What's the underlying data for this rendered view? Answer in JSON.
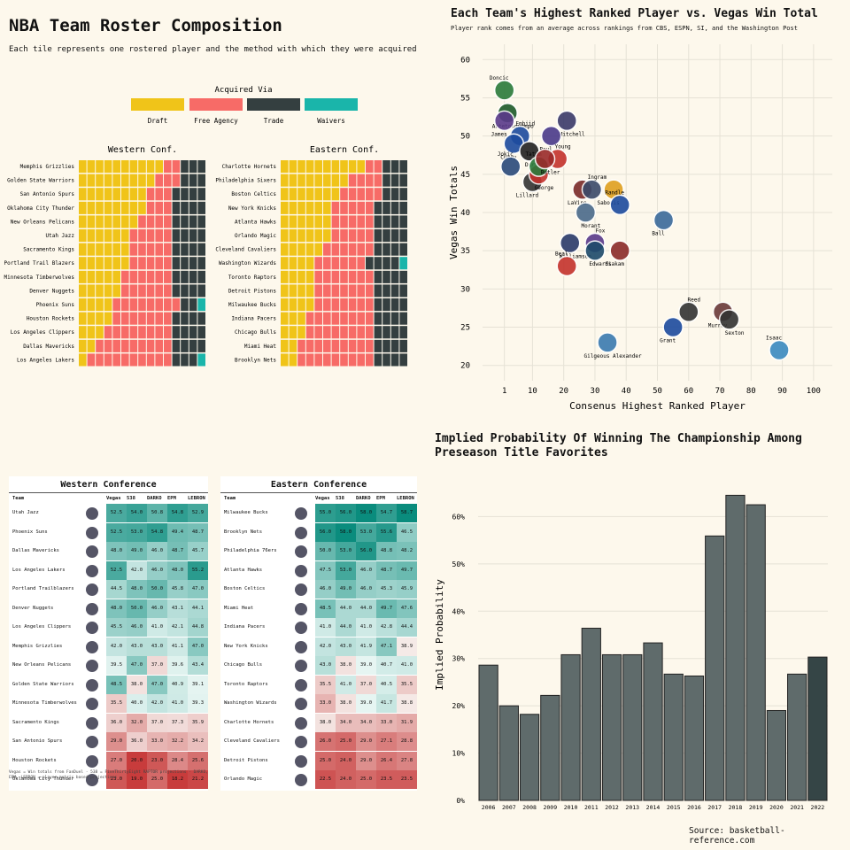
{
  "colors": {
    "draft": "#f0c419",
    "free_agency": "#f76b67",
    "trade": "#343f40",
    "waivers": "#1ab5aa",
    "bar": "#5f6b6b",
    "bar_last": "#354546",
    "bg": "#fdf8ec"
  },
  "roster": {
    "title": "NBA Team Roster Composition",
    "subtitle": "Each tile represents one rostered player and the method with which they were acquired",
    "legend_title": "Acquired Via",
    "legend": [
      "Draft",
      "Free Agency",
      "Trade",
      "Waivers"
    ]
  },
  "chart_data": [
    {
      "type": "heatmap",
      "title": "Western Conf.",
      "categories_note": "rows = teams; values = [draft, free agency, trade, waivers] tile counts",
      "rows": [
        {
          "team": "Memphis Grizzlies",
          "counts": [
            10,
            2,
            3,
            0
          ]
        },
        {
          "team": "Golden State Warriors",
          "counts": [
            9,
            3,
            3,
            0
          ]
        },
        {
          "team": "San Antonio Spurs",
          "counts": [
            8,
            3,
            4,
            0
          ]
        },
        {
          "team": "Oklahoma City Thunder",
          "counts": [
            8,
            3,
            4,
            0
          ]
        },
        {
          "team": "New Orleans Pelicans",
          "counts": [
            7,
            4,
            4,
            0
          ]
        },
        {
          "team": "Utah Jazz",
          "counts": [
            6,
            5,
            4,
            0
          ]
        },
        {
          "team": "Sacramento Kings",
          "counts": [
            6,
            5,
            4,
            0
          ]
        },
        {
          "team": "Portland Trail Blazers",
          "counts": [
            6,
            5,
            4,
            0
          ]
        },
        {
          "team": "Minnesota Timberwolves",
          "counts": [
            5,
            6,
            4,
            0
          ]
        },
        {
          "team": "Denver Nuggets",
          "counts": [
            5,
            6,
            4,
            0
          ]
        },
        {
          "team": "Phoenix Suns",
          "counts": [
            4,
            8,
            2,
            1
          ]
        },
        {
          "team": "Houston Rockets",
          "counts": [
            4,
            7,
            4,
            0
          ]
        },
        {
          "team": "Los Angeles Clippers",
          "counts": [
            3,
            8,
            4,
            0
          ]
        },
        {
          "team": "Dallas Mavericks",
          "counts": [
            2,
            9,
            4,
            0
          ]
        },
        {
          "team": "Los Angeles Lakers",
          "counts": [
            1,
            10,
            3,
            1
          ]
        }
      ]
    },
    {
      "type": "heatmap",
      "title": "Eastern Conf.",
      "rows": [
        {
          "team": "Charlotte Hornets",
          "counts": [
            10,
            2,
            3,
            0
          ]
        },
        {
          "team": "Philadelphia Sixers",
          "counts": [
            8,
            4,
            3,
            0
          ]
        },
        {
          "team": "Boston Celtics",
          "counts": [
            7,
            5,
            3,
            0
          ]
        },
        {
          "team": "New York Knicks",
          "counts": [
            6,
            5,
            4,
            0
          ]
        },
        {
          "team": "Atlanta Hawks",
          "counts": [
            6,
            5,
            4,
            0
          ]
        },
        {
          "team": "Orlando Magic",
          "counts": [
            6,
            5,
            4,
            0
          ]
        },
        {
          "team": "Cleveland Cavaliers",
          "counts": [
            5,
            6,
            4,
            0
          ]
        },
        {
          "team": "Washington Wizards",
          "counts": [
            4,
            6,
            4,
            1
          ]
        },
        {
          "team": "Toronto Raptors",
          "counts": [
            4,
            7,
            4,
            0
          ]
        },
        {
          "team": "Detroit Pistons",
          "counts": [
            4,
            7,
            4,
            0
          ]
        },
        {
          "team": "Milwaukee Bucks",
          "counts": [
            4,
            7,
            4,
            0
          ]
        },
        {
          "team": "Indiana Pacers",
          "counts": [
            3,
            8,
            4,
            0
          ]
        },
        {
          "team": "Chicago Bulls",
          "counts": [
            3,
            8,
            4,
            0
          ]
        },
        {
          "team": "Miami Heat",
          "counts": [
            2,
            9,
            4,
            0
          ]
        },
        {
          "team": "Brooklyn Nets",
          "counts": [
            2,
            9,
            4,
            0
          ]
        }
      ]
    },
    {
      "type": "scatter",
      "title": "Each Team's Highest Ranked Player vs. Vegas Win Total",
      "subtitle": "Player rank comes from an average across rankings from CBS, ESPN, SI, and the Washington Post",
      "xlabel": "Consenus Highest Ranked Player",
      "ylabel": "Vegas Win Totals",
      "xlim": [
        -6,
        106
      ],
      "ylim": [
        18,
        62
      ],
      "xticks": [
        1,
        10,
        20,
        30,
        40,
        50,
        60,
        70,
        80,
        90,
        100
      ],
      "yticks": [
        20,
        25,
        30,
        35,
        40,
        45,
        50,
        55,
        60
      ],
      "points": [
        {
          "label": "Doncic",
          "x": 1,
          "y": 56,
          "c": "#2a7a3a"
        },
        {
          "label": "Antetokounmpo",
          "x": 2,
          "y": 53,
          "c": "#1d5a2a"
        },
        {
          "label": "James",
          "x": 1,
          "y": 52,
          "c": "#5a3a8a"
        },
        {
          "label": "Embiid",
          "x": 6,
          "y": 50,
          "c": "#1d4b9e"
        },
        {
          "label": "Curry",
          "x": 4,
          "y": 49,
          "c": "#1d4b9e"
        },
        {
          "label": "Durant",
          "x": 9,
          "y": 48,
          "c": "#222222"
        },
        {
          "label": "Jokic",
          "x": 3,
          "y": 46,
          "c": "#2a4a7a"
        },
        {
          "label": "Mitchell",
          "x": 21,
          "y": 52,
          "c": "#3a3a6a"
        },
        {
          "label": "Paul",
          "x": 16,
          "y": 50,
          "c": "#4a3a8a"
        },
        {
          "label": "Young",
          "x": 18,
          "y": 47,
          "c": "#c4322c"
        },
        {
          "label": "Lillard",
          "x": 10,
          "y": 44,
          "c": "#333333"
        },
        {
          "label": "George",
          "x": 12,
          "y": 45,
          "c": "#c4322c"
        },
        {
          "label": "Tatum",
          "x": 12,
          "y": 46,
          "c": "#2a7a3a"
        },
        {
          "label": "Butler",
          "x": 14,
          "y": 47,
          "c": "#9a2a2a"
        },
        {
          "label": "LaVine",
          "x": 26,
          "y": 43,
          "c": "#7a2a2a"
        },
        {
          "label": "Ingram",
          "x": 29,
          "y": 43,
          "c": "#3a4a6a"
        },
        {
          "label": "Sabonis",
          "x": 36,
          "y": 43,
          "c": "#e0a020"
        },
        {
          "label": "Morant",
          "x": 27,
          "y": 40,
          "c": "#4a6a8a"
        },
        {
          "label": "Randle",
          "x": 38,
          "y": 41,
          "c": "#1d4b9e"
        },
        {
          "label": "Gilgeous Alexander",
          "x": 34,
          "y": 23,
          "c": "#3a7ab0"
        },
        {
          "label": "Siakam",
          "x": 38,
          "y": 35,
          "c": "#8a2a2a"
        },
        {
          "label": "Fox",
          "x": 30,
          "y": 36,
          "c": "#5a3a8a"
        },
        {
          "label": "Ball",
          "x": 52,
          "y": 39,
          "c": "#3a6a9a"
        },
        {
          "label": "Williamson",
          "x": 22,
          "y": 36,
          "c": "#2a3a6a"
        },
        {
          "label": "Beal",
          "x": 21,
          "y": 33,
          "c": "#c4322c"
        },
        {
          "label": "Edwards",
          "x": 30,
          "y": 35,
          "c": "#1d4a6a"
        },
        {
          "label": "Grant",
          "x": 55,
          "y": 25,
          "c": "#1d4b9e"
        },
        {
          "label": "Reed",
          "x": 60,
          "y": 27,
          "c": "#333333"
        },
        {
          "label": "Murray",
          "x": 71,
          "y": 27,
          "c": "#6a3a3a"
        },
        {
          "label": "Sexton",
          "x": 73,
          "y": 26,
          "c": "#333333"
        },
        {
          "label": "Isaac",
          "x": 89,
          "y": 22,
          "c": "#3a8ac0"
        }
      ]
    },
    {
      "type": "bar",
      "title": "Implied Probability Of Winning The Championship Among Preseason Title Favorites",
      "xlabel": "",
      "ylabel": "Implied Probability",
      "ylim": [
        0,
        70
      ],
      "yticks": [
        0,
        10,
        20,
        30,
        40,
        50,
        60
      ],
      "categories": [
        "2006",
        "2007",
        "2008",
        "2009",
        "2010",
        "2011",
        "2012",
        "2013",
        "2014",
        "2015",
        "2016",
        "2017",
        "2018",
        "2019",
        "2020",
        "2021",
        "2022"
      ],
      "values": [
        28.6,
        20.0,
        18.2,
        22.2,
        30.8,
        36.4,
        30.8,
        30.8,
        33.3,
        26.7,
        26.3,
        55.9,
        64.5,
        62.5,
        19.0,
        26.7,
        30.3
      ],
      "source": "Source: basketball-reference.com"
    }
  ],
  "tables": {
    "columns": [
      "Team",
      "Vegas",
      "538",
      "DARKO",
      "EPM",
      "LEBRON"
    ],
    "west": {
      "title": "Western Conference",
      "rows": [
        [
          "Utah Jazz",
          "52.5",
          "54.0",
          "50.8",
          "54.8",
          "52.9"
        ],
        [
          "Phoenix Suns",
          "52.5",
          "53.0",
          "54.8",
          "49.4",
          "48.7"
        ],
        [
          "Dallas Mavericks",
          "48.0",
          "49.0",
          "46.0",
          "48.7",
          "45.7"
        ],
        [
          "Los Angeles Lakers",
          "52.5",
          "42.0",
          "46.0",
          "48.0",
          "55.2"
        ],
        [
          "Portland Trailblazers",
          "44.5",
          "48.0",
          "50.0",
          "45.8",
          "47.0"
        ],
        [
          "Denver Nuggets",
          "48.0",
          "50.0",
          "46.0",
          "43.1",
          "44.1"
        ],
        [
          "Los Angeles Clippers",
          "45.5",
          "46.0",
          "41.0",
          "42.1",
          "44.8"
        ],
        [
          "Memphis Grizzlies",
          "42.0",
          "43.0",
          "43.0",
          "41.1",
          "47.0"
        ],
        [
          "New Orleans Pelicans",
          "39.5",
          "47.0",
          "37.0",
          "39.6",
          "43.4"
        ],
        [
          "Golden State Warriors",
          "48.5",
          "38.0",
          "47.0",
          "40.9",
          "39.1"
        ],
        [
          "Minnesota Timberwolves",
          "35.5",
          "40.0",
          "42.0",
          "41.0",
          "39.3"
        ],
        [
          "Sacramento Kings",
          "36.0",
          "32.0",
          "37.0",
          "37.3",
          "35.9"
        ],
        [
          "San Antonio Spurs",
          "29.0",
          "36.0",
          "33.0",
          "32.2",
          "34.2"
        ],
        [
          "Houston Rockets",
          "27.0",
          "20.0",
          "23.0",
          "28.4",
          "25.6"
        ],
        [
          "Oklahoma City Thunder",
          "23.0",
          "19.0",
          "25.0",
          "18.2",
          "21.2"
        ]
      ]
    },
    "east": {
      "title": "Eastern Conference",
      "rows": [
        [
          "Milwaukee Bucks",
          "55.0",
          "56.0",
          "58.0",
          "54.7",
          "58.7"
        ],
        [
          "Brooklyn Nets",
          "56.0",
          "58.0",
          "53.0",
          "55.6",
          "46.5"
        ],
        [
          "Philadelphia 76ers",
          "50.0",
          "53.0",
          "56.0",
          "48.8",
          "48.2"
        ],
        [
          "Atlanta Hawks",
          "47.5",
          "53.0",
          "46.0",
          "48.7",
          "49.7"
        ],
        [
          "Boston Celtics",
          "46.0",
          "49.0",
          "46.0",
          "45.3",
          "45.9"
        ],
        [
          "Miami Heat",
          "48.5",
          "44.0",
          "44.0",
          "49.7",
          "47.6"
        ],
        [
          "Indiana Pacers",
          "41.0",
          "44.0",
          "41.0",
          "42.8",
          "44.4"
        ],
        [
          "New York Knicks",
          "42.0",
          "43.0",
          "41.9",
          "47.1",
          "38.9"
        ],
        [
          "Chicago Bulls",
          "43.0",
          "38.0",
          "39.0",
          "40.7",
          "41.0"
        ],
        [
          "Toronto Raptors",
          "35.5",
          "41.0",
          "37.0",
          "40.5",
          "35.5"
        ],
        [
          "Washington Wizards",
          "33.0",
          "38.0",
          "39.0",
          "41.7",
          "38.8"
        ],
        [
          "Charlotte Hornets",
          "38.0",
          "34.0",
          "34.0",
          "33.0",
          "31.9"
        ],
        [
          "Cleveland Cavaliers",
          "26.0",
          "25.0",
          "29.0",
          "27.1",
          "28.8"
        ],
        [
          "Detroit Pistons",
          "25.0",
          "24.0",
          "29.0",
          "26.4",
          "27.8"
        ],
        [
          "Orlando Magic",
          "22.5",
          "24.0",
          "25.0",
          "23.5",
          "23.5"
        ]
      ]
    },
    "footnote": "Vegas = Win totals from FanDuel · 538 = FiveThirtyEight RAPTOR projections · DARKO, EPM, LEBRON = player-metric based projections"
  }
}
